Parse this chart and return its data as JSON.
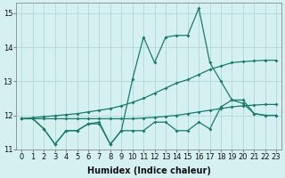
{
  "xlabel": "Humidex (Indice chaleur)",
  "bg_color": "#d4f0f0",
  "grid_color": "#b0d8d8",
  "line_color": "#1a7a6e",
  "x": [
    0,
    1,
    2,
    3,
    4,
    5,
    6,
    7,
    8,
    9,
    10,
    11,
    12,
    13,
    14,
    15,
    16,
    17,
    18,
    19,
    20,
    21,
    22,
    23
  ],
  "y_main1": [
    11.9,
    11.9,
    11.6,
    11.15,
    11.55,
    11.55,
    11.75,
    11.75,
    11.15,
    11.55,
    13.05,
    14.3,
    13.55,
    14.3,
    14.35,
    14.35,
    15.15,
    13.55,
    13.0,
    12.45,
    12.45,
    12.05,
    12.0,
    12.0
  ],
  "y_main2": [
    11.9,
    11.9,
    11.6,
    11.15,
    11.55,
    11.55,
    11.75,
    11.8,
    11.15,
    11.55,
    11.55,
    11.55,
    11.8,
    11.8,
    11.55,
    11.55,
    11.8,
    11.6,
    12.25,
    12.45,
    12.35,
    12.05,
    12.0,
    12.0
  ],
  "y_upper": [
    11.9,
    11.93,
    11.96,
    11.99,
    12.02,
    12.05,
    12.1,
    12.15,
    12.2,
    12.28,
    12.38,
    12.5,
    12.65,
    12.8,
    12.95,
    13.05,
    13.2,
    13.35,
    13.45,
    13.55,
    13.58,
    13.6,
    13.62,
    13.62
  ],
  "y_lower": [
    11.9,
    11.9,
    11.9,
    11.9,
    11.9,
    11.9,
    11.9,
    11.9,
    11.9,
    11.9,
    11.9,
    11.92,
    11.94,
    11.97,
    12.0,
    12.05,
    12.1,
    12.15,
    12.2,
    12.25,
    12.28,
    12.3,
    12.32,
    12.32
  ],
  "ylim": [
    11.0,
    15.3
  ],
  "xlim": [
    -0.5,
    23.5
  ],
  "yticks": [
    11,
    12,
    13,
    14,
    15
  ],
  "xticks": [
    0,
    1,
    2,
    3,
    4,
    5,
    6,
    7,
    8,
    9,
    10,
    11,
    12,
    13,
    14,
    15,
    16,
    17,
    18,
    19,
    20,
    21,
    22,
    23
  ],
  "label_fontsize": 7,
  "tick_fontsize": 6
}
